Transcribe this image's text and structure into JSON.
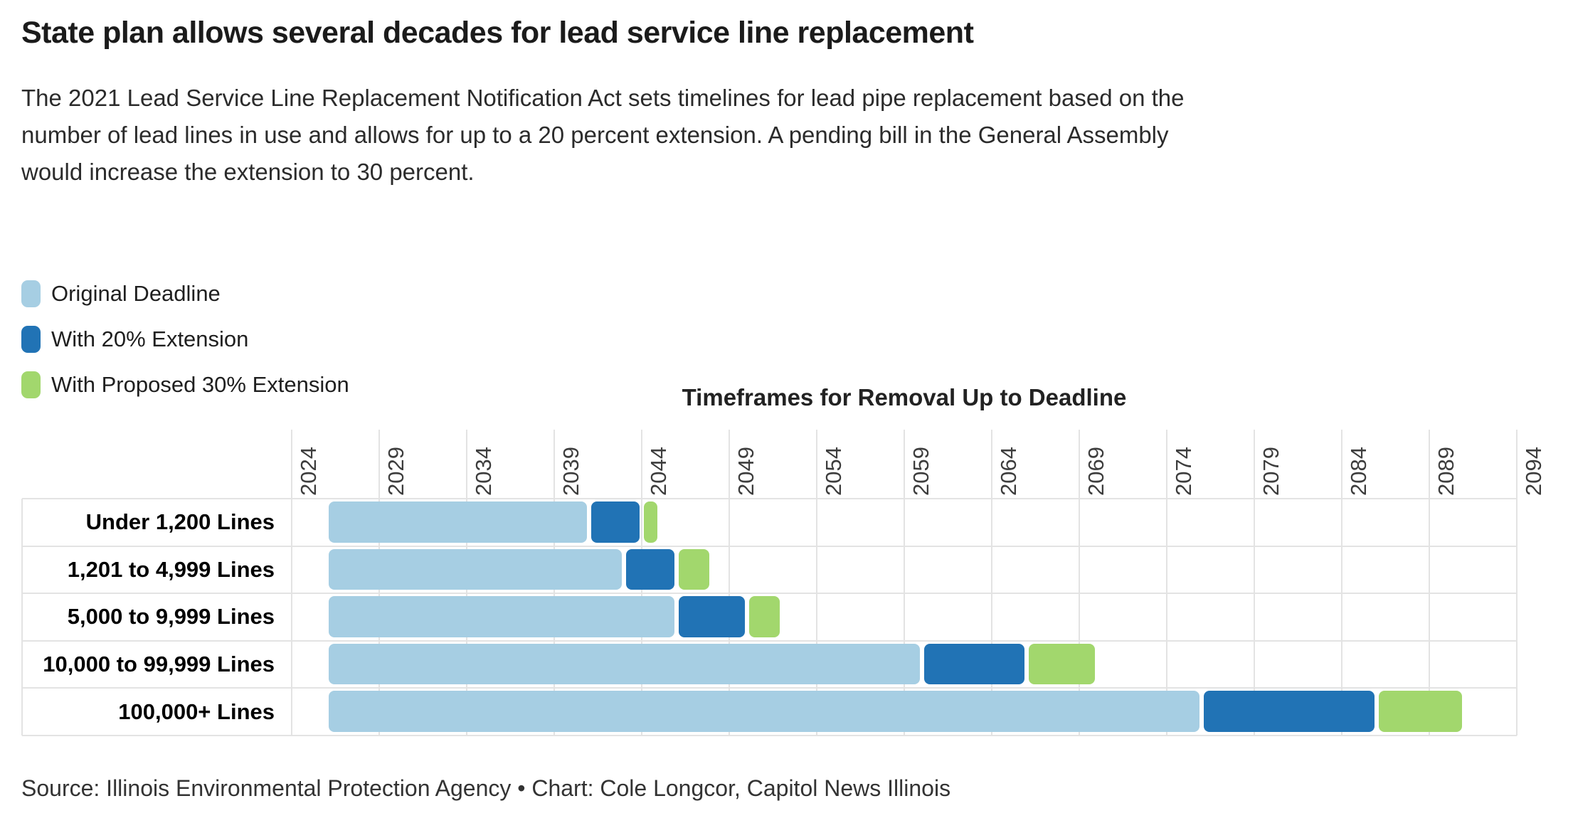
{
  "page": {
    "title": "State plan allows several decades for lead service line replacement",
    "subtitle_lines": [
      "The 2021 Lead Service Line Replacement Notification Act sets timelines for lead pipe replacement based on the",
      "number of lead lines in use and allows for up to a 20 percent extension. A pending bill in the General Assembly",
      "would increase the extension to 30 percent."
    ],
    "source": "Source: Illinois Environmental Protection Agency • Chart: Cole Longcor, Capitol News Illinois"
  },
  "legend": {
    "items": [
      {
        "label": "Original Deadline",
        "color": "#a6cee3"
      },
      {
        "label": "With 20% Extension",
        "color": "#2173b5"
      },
      {
        "label": "With Proposed 30% Extension",
        "color": "#a2d76d"
      }
    ]
  },
  "colors": {
    "original": "#a6cee3",
    "extension20": "#2173b5",
    "extension30": "#a2d76d",
    "grid": "#e3e3e3"
  },
  "chart_data": {
    "type": "bar",
    "subtype": "horizontal-timeline-stacked",
    "title": "Timeframes for Removal Up to Deadline",
    "xlabel": "",
    "ylabel": "",
    "xlim": [
      2024,
      2094
    ],
    "x_ticks": [
      2024,
      2029,
      2034,
      2039,
      2044,
      2049,
      2054,
      2059,
      2064,
      2069,
      2074,
      2079,
      2084,
      2089,
      2094
    ],
    "grid": true,
    "legend_position": "top-left",
    "categories": [
      "Under 1,200 Lines",
      "1,201 to 4,999 Lines",
      "5,000 to 9,999 Lines",
      "10,000 to 99,999 Lines",
      "100,000+ Lines"
    ],
    "series": [
      {
        "name": "Original Deadline",
        "segment": "start_to_original"
      },
      {
        "name": "With 20% Extension",
        "segment": "original_to_ext20"
      },
      {
        "name": "With Proposed 30% Extension",
        "segment": "ext20_to_ext30"
      }
    ],
    "rows": [
      {
        "label": "Under 1,200 Lines",
        "start": 2026,
        "original_deadline": 2041,
        "with_20_extension": 2044,
        "with_30_extension": 2045
      },
      {
        "label": "1,201 to 4,999 Lines",
        "start": 2026,
        "original_deadline": 2043,
        "with_20_extension": 2046,
        "with_30_extension": 2048
      },
      {
        "label": "5,000 to 9,999 Lines",
        "start": 2026,
        "original_deadline": 2046,
        "with_20_extension": 2050,
        "with_30_extension": 2052
      },
      {
        "label": "10,000 to 99,999 Lines",
        "start": 2026,
        "original_deadline": 2060,
        "with_20_extension": 2066,
        "with_30_extension": 2070
      },
      {
        "label": "100,000+ Lines",
        "start": 2026,
        "original_deadline": 2076,
        "with_20_extension": 2086,
        "with_30_extension": 2091
      }
    ]
  }
}
